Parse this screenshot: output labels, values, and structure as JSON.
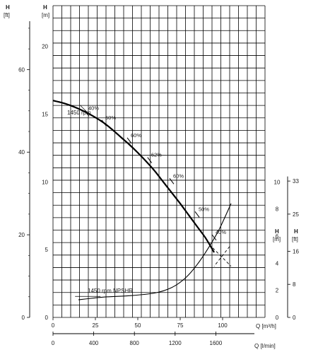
{
  "chart_data": {
    "type": "line",
    "title": "",
    "xlabel": "Q [m³/h]",
    "xlabel_secondary": "Q [l/min]",
    "ylabel_left_ft": "H",
    "ylabel_left_ft_unit": "[ft]",
    "ylabel_left_m": "H",
    "ylabel_left_m_unit": "[m]",
    "ylabel_right_m": "H",
    "ylabel_right_m_unit": "[m]",
    "ylabel_right_ft": "H",
    "ylabel_right_ft_unit": "[ft]",
    "xlim": [
      0,
      125
    ],
    "ylim_m": [
      0,
      23
    ],
    "xticks": [
      "0",
      "25",
      "50",
      "75",
      "100"
    ],
    "xticks_values": [
      0,
      25,
      50,
      75,
      100
    ],
    "xticks_secondary": [
      "0",
      "400",
      "800",
      "1200",
      "1600"
    ],
    "xticks_secondary_values_m3h": [
      0,
      24,
      48,
      72,
      96
    ],
    "yticks_m": [
      "0",
      "5",
      "10",
      "15",
      "20"
    ],
    "yticks_m_values": [
      0,
      5,
      10,
      15,
      20
    ],
    "yticks_ft": [
      "0",
      "20",
      "40",
      "60"
    ],
    "yticks_ft_values_m": [
      0,
      6.096,
      12.192,
      18.288
    ],
    "yticks_right_m": [
      "0",
      "2",
      "4",
      "6",
      "8",
      "10"
    ],
    "yticks_right_m_values": [
      0,
      2,
      4,
      6,
      8,
      10
    ],
    "yticks_right_ft": [
      "0",
      "8",
      "16",
      "25",
      "33"
    ],
    "yticks_right_ft_values_m": [
      0,
      2.44,
      4.88,
      7.62,
      10.06
    ],
    "grid": true,
    "series": [
      {
        "name": "1450 rpm",
        "x": [
          0,
          5,
          10,
          15,
          20,
          25,
          30,
          35,
          40,
          45,
          50,
          55,
          60,
          65,
          70,
          75,
          80,
          85,
          90,
          95
        ],
        "y": [
          16.0,
          15.85,
          15.65,
          15.4,
          15.1,
          14.75,
          14.35,
          13.85,
          13.3,
          12.75,
          12.15,
          11.5,
          10.8,
          10.0,
          9.2,
          8.4,
          7.55,
          6.7,
          5.85,
          4.8
        ]
      },
      {
        "name": "1450 rpm NPSHR",
        "x": [
          15,
          30,
          45,
          60,
          70,
          78,
          85,
          92,
          98,
          105
        ],
        "y": [
          1.3,
          1.5,
          1.6,
          1.8,
          2.2,
          2.9,
          3.9,
          5.2,
          6.5,
          8.4
        ]
      }
    ],
    "efficiency_labels": [
      {
        "label": "40%",
        "x": 20,
        "y": 15.05
      },
      {
        "label": "50%",
        "x": 30,
        "y": 14.35
      },
      {
        "label": "60%",
        "x": 45,
        "y": 13.05
      },
      {
        "label": "62%",
        "x": 57,
        "y": 11.6
      },
      {
        "label": "60%",
        "x": 70,
        "y": 10.05
      },
      {
        "label": "50%",
        "x": 85,
        "y": 7.6
      },
      {
        "label": "40%",
        "x": 95,
        "y": 5.9
      }
    ],
    "cross_marker": {
      "x": 100,
      "y": 4.4
    }
  }
}
